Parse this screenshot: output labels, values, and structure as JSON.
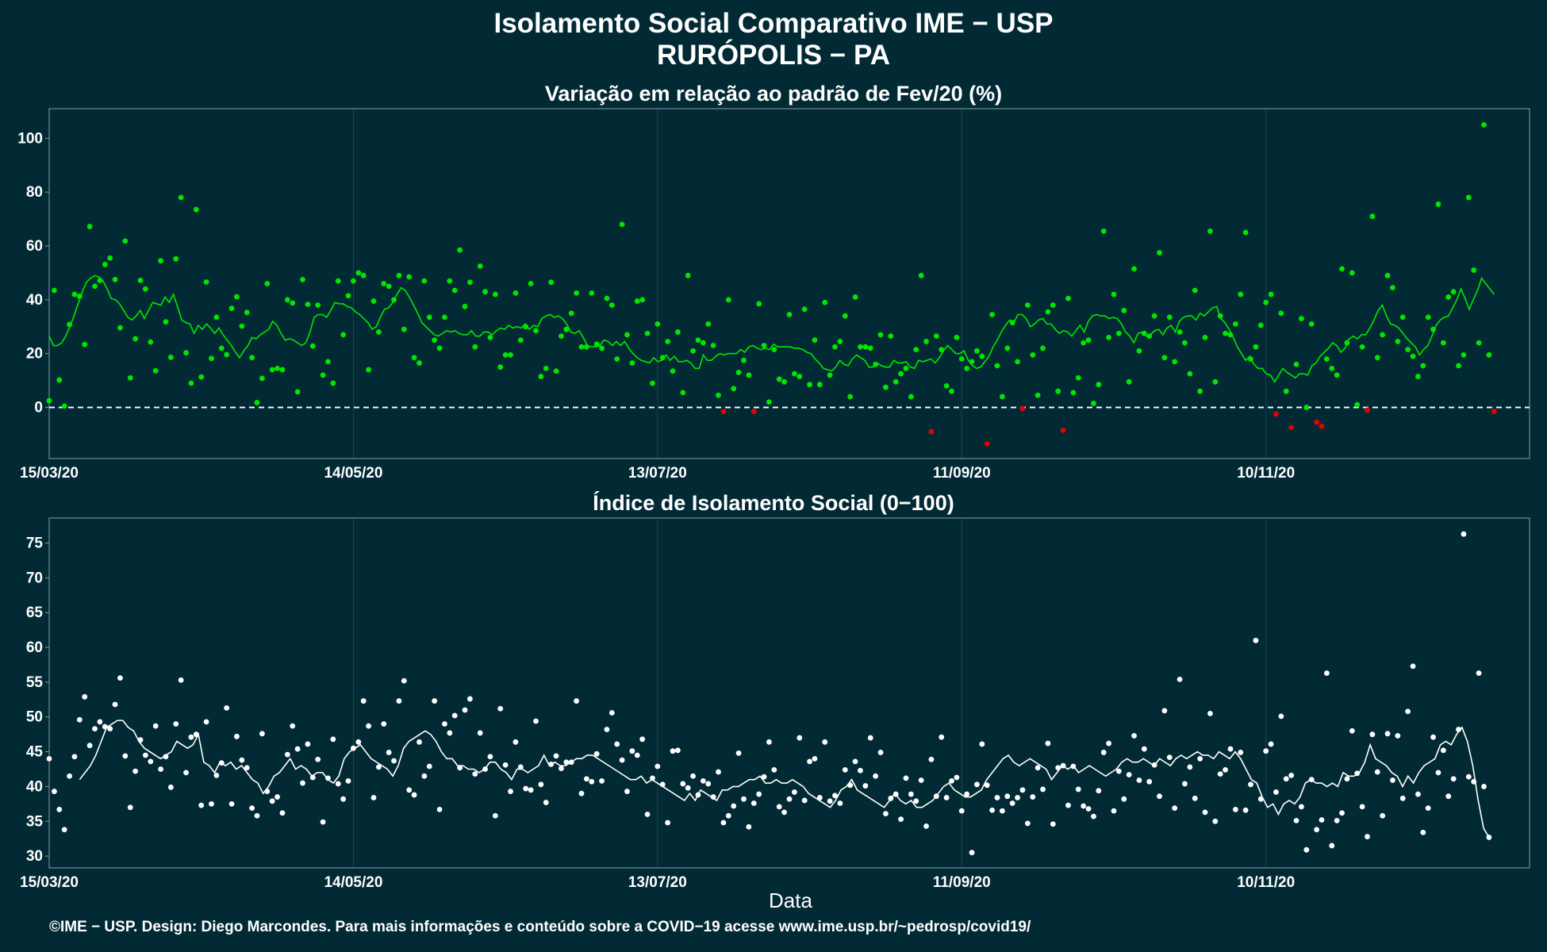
{
  "header": {
    "title": "Isolamento Social Comparativo IME − USP",
    "subtitle": "RURÓPOLIS − PA"
  },
  "footer": {
    "credit": "©IME − USP. Design: Diego Marcondes. Para mais informações e conteúdo sobre a COVID−19 acesse www.ime.usp.br/~pedrosp/covid19/"
  },
  "colors": {
    "background": "#022a35",
    "positive": "#00e600",
    "negative": "#e60000",
    "index_points": "#ffffff",
    "grid": "#1b4450",
    "frame": "#8a9ca2"
  },
  "chart_data": [
    {
      "type": "scatter",
      "title": "Variação em relação ao padrão de Fev/20 (%)",
      "xlabel": "",
      "ylabel": "",
      "x_start": "15/03/20",
      "x_end": "2021-01-01",
      "x_ticks": [
        "15/03/20",
        "14/05/20",
        "13/07/20",
        "11/09/20",
        "10/11/20"
      ],
      "yticks": [
        0,
        20,
        40,
        60,
        80,
        100
      ],
      "ylim": [
        -19,
        111
      ],
      "reference_line": 0,
      "values": [
        2.5,
        43.5,
        10.2,
        0.5,
        30.8,
        42.0,
        41.3,
        23.4,
        67.2,
        45.0,
        47.2,
        53.1,
        55.5,
        47.5,
        29.6,
        61.8,
        11.0,
        25.5,
        47.2,
        44.0,
        24.3,
        13.6,
        54.5,
        31.8,
        18.6,
        55.2,
        78.0,
        20.3,
        9.0,
        73.5,
        11.3,
        46.6,
        18.2,
        33.5,
        22.0,
        19.6,
        36.8,
        41.1,
        30.2,
        35.3,
        18.5,
        1.8,
        10.8,
        46.0,
        14.0,
        14.5,
        14.0,
        40.0,
        38.8,
        5.8,
        47.5,
        38.3,
        22.8,
        38.0,
        12.0,
        17.0,
        9.0,
        47.0,
        27.0,
        41.5,
        47.0,
        50.0,
        49.0,
        14.0,
        39.5,
        28.0,
        46.0,
        45.0,
        40.0,
        49.0,
        29.0,
        48.5,
        18.5,
        16.5,
        47.0,
        33.5,
        25.0,
        22.0,
        33.5,
        47.0,
        43.5,
        58.5,
        37.5,
        46.5,
        22.5,
        52.5,
        43.0,
        26.0,
        42.0,
        15.0,
        19.5,
        19.5,
        42.5,
        25.0,
        30.0,
        46.0,
        28.5,
        11.5,
        14.5,
        46.5,
        13.5,
        26.5,
        29.0,
        35.0,
        42.5,
        22.5,
        22.5,
        42.5,
        23.5,
        22.0,
        40.5,
        38.0,
        18.0,
        68.0,
        27.0,
        16.5,
        39.5,
        40.0,
        27.5,
        9.0,
        31.0,
        18.5,
        24.5,
        13.5,
        28.0,
        5.5,
        49.0,
        21.0,
        25.0,
        24.0,
        31.0,
        23.0,
        4.5,
        -1.5,
        40.0,
        7.0,
        13.0,
        17.5,
        12.0,
        -1.5,
        38.5,
        23.0,
        2.0,
        21.5,
        10.5,
        9.5,
        34.5,
        12.5,
        11.5,
        36.5,
        8.5,
        25.0,
        8.5,
        39.0,
        12.0,
        22.5,
        24.5,
        34.0,
        4.0,
        41.0,
        22.5,
        22.5,
        22.0,
        16.0,
        27.0,
        7.5,
        26.5,
        9.5,
        12.5,
        14.5,
        4.0,
        21.5,
        49.0,
        24.5,
        -9.0,
        26.5,
        21.5,
        8.0,
        6.0,
        26.0,
        18.0,
        14.5,
        17.0,
        21.0,
        19.0,
        -13.5,
        34.5,
        15.5,
        4.0,
        22.0,
        31.5,
        17.0,
        -0.5,
        38.0,
        19.5,
        4.5,
        22.0,
        35.5,
        38.0,
        6.0,
        -8.5,
        40.5,
        5.5,
        11.0,
        24.0,
        25.0,
        1.5,
        8.5,
        65.5,
        26.0,
        42.0,
        27.5,
        36.0,
        9.5,
        51.5,
        21.0,
        27.5,
        26.5,
        34.0,
        57.5,
        18.5,
        33.5,
        17.0,
        28.0,
        24.0,
        12.5,
        43.5,
        6.0,
        26.0,
        65.5,
        9.5,
        34.0,
        27.5,
        27.0,
        31.0,
        42.0,
        65.0,
        18.0,
        22.5,
        30.5,
        39.0,
        42.0,
        -2.5,
        35.0,
        6.0,
        -7.5,
        16.0,
        33.0,
        0.0,
        31.0,
        -5.5,
        -7.0,
        18.0,
        14.5,
        12.0,
        51.5,
        24.0,
        50.0,
        1.0,
        22.5,
        -1.0,
        71.0,
        18.5,
        27.0,
        49.0,
        44.5,
        24.5,
        33.5,
        21.5,
        19.0,
        11.5,
        15.5,
        33.5,
        29.0,
        75.5,
        24.0,
        41.0,
        43.0,
        15.5,
        19.5,
        78.0,
        51.0,
        24.0,
        105.0,
        19.5,
        -1.5
      ],
      "moving_average": [
        26.5,
        23.0,
        23.0,
        24.0,
        26.5,
        30.0,
        34.0,
        38.5,
        43.0,
        46.5,
        48.0,
        49.0,
        48.5,
        47.0,
        44.0,
        40.5,
        40.0,
        38.5,
        36.0,
        33.5,
        32.5,
        34.0,
        36.0,
        33.0,
        36.0,
        39.0,
        38.5,
        38.0,
        41.0,
        39.0,
        42.0,
        37.5,
        32.5,
        31.5,
        31.0,
        27.5,
        30.5,
        29.0,
        31.0,
        29.5,
        27.5,
        29.5,
        27.0,
        25.0,
        23.0,
        20.5,
        18.5,
        21.0,
        23.0,
        26.0,
        25.5,
        27.0,
        28.0,
        29.0,
        32.0,
        30.5,
        27.5,
        25.0,
        25.5,
        25.0,
        24.0,
        23.0,
        24.0,
        28.0,
        33.5,
        34.5,
        34.5,
        33.5,
        36.0,
        39.0,
        38.5,
        38.5,
        37.5,
        37.0,
        35.5,
        34.5,
        33.0,
        31.5,
        29.0,
        30.0,
        33.5,
        36.5,
        37.0,
        39.0,
        42.0,
        44.5,
        43.5,
        41.0,
        38.0,
        35.0,
        31.5,
        30.0,
        28.5,
        27.0,
        26.5,
        27.5,
        28.5,
        28.0,
        28.5,
        27.5,
        27.0,
        27.0,
        28.5,
        26.5,
        26.5,
        28.0,
        28.0,
        27.0,
        28.5,
        29.5,
        29.0,
        30.5,
        29.5,
        30.0,
        29.5,
        31.0,
        29.0,
        30.5,
        30.0,
        33.0,
        34.0,
        34.5,
        33.5,
        34.0,
        33.0,
        31.0,
        28.0,
        27.5,
        28.5,
        26.0,
        23.0,
        22.5,
        22.5,
        23.0,
        25.0,
        24.5,
        23.0,
        24.5,
        23.0,
        24.5,
        22.0,
        20.0,
        18.5,
        17.5,
        17.0,
        16.5,
        18.5,
        17.0,
        17.5,
        19.5,
        17.5,
        19.0,
        17.0,
        17.0,
        17.5,
        16.5,
        14.5,
        14.5,
        19.5,
        17.5,
        17.5,
        19.0,
        20.0,
        19.5,
        20.0,
        20.0,
        20.0,
        21.5,
        20.5,
        22.5,
        23.0,
        22.0,
        21.5,
        22.0,
        21.5,
        23.5,
        22.5,
        22.5,
        22.5,
        22.5,
        22.0,
        22.0,
        21.5,
        20.5,
        20.0,
        18.0,
        16.5,
        14.5,
        14.0,
        13.5,
        15.0,
        17.5,
        16.0,
        15.5,
        18.0,
        19.5,
        18.5,
        17.5,
        15.0,
        15.0,
        16.5,
        15.5,
        15.0,
        15.0,
        17.5,
        16.5,
        16.5,
        17.0,
        15.0,
        14.5,
        17.5,
        17.0,
        17.5,
        18.0,
        16.5,
        18.5,
        21.0,
        23.0,
        21.5,
        20.0,
        20.0,
        21.0,
        17.5,
        15.5,
        14.5,
        15.0,
        17.0,
        19.0,
        22.5,
        25.0,
        28.0,
        30.5,
        32.5,
        31.5,
        34.5,
        34.5,
        33.0,
        30.0,
        31.0,
        32.5,
        33.0,
        31.0,
        31.0,
        29.0,
        27.5,
        28.5,
        28.0,
        26.5,
        28.5,
        30.5,
        28.0,
        32.0,
        34.0,
        34.5,
        34.0,
        34.0,
        33.0,
        33.5,
        33.0,
        31.0,
        28.0,
        26.5,
        24.0,
        27.5,
        28.0,
        26.5,
        27.0,
        28.5,
        29.0,
        27.0,
        29.5,
        30.5,
        28.0,
        32.0,
        33.5,
        34.0,
        34.0,
        32.5,
        35.0,
        34.0,
        35.5,
        37.0,
        37.5,
        33.0,
        31.5,
        29.0,
        26.0,
        22.5,
        20.0,
        17.5,
        19.0,
        16.0,
        14.5,
        14.5,
        12.5,
        12.0,
        9.5,
        12.0,
        14.5,
        13.0,
        12.0,
        11.0,
        12.5,
        12.5,
        12.0,
        15.5,
        16.5,
        19.0,
        20.5,
        22.0,
        24.0,
        23.0,
        20.5,
        22.0,
        25.5,
        26.5,
        25.5,
        27.0,
        27.0,
        29.5,
        32.5,
        36.0,
        38.0,
        34.0,
        31.0,
        30.5,
        29.5,
        27.5,
        25.5,
        24.0,
        22.5,
        19.5,
        21.5,
        23.0,
        26.5,
        30.5,
        32.5,
        33.5,
        34.0,
        37.0,
        40.0,
        44.0,
        40.5,
        36.5,
        40.0,
        43.5,
        48.0,
        46.0,
        44.0,
        42.0
      ]
    },
    {
      "type": "scatter",
      "title": "Índice de Isolamento Social (0−100)",
      "xlabel": "Data",
      "ylabel": "",
      "x_start": "15/03/20",
      "x_end": "2021-01-01",
      "x_ticks": [
        "15/03/20",
        "14/05/20",
        "13/07/20",
        "11/09/20",
        "10/11/20"
      ],
      "yticks": [
        30,
        35,
        40,
        45,
        50,
        55,
        60,
        65,
        70,
        75
      ],
      "ylim": [
        28.3,
        78.6
      ],
      "values": [
        44.0,
        39.3,
        36.7,
        33.8,
        41.5,
        44.3,
        49.6,
        52.9,
        45.9,
        48.3,
        49.3,
        48.6,
        48.3,
        51.8,
        55.6,
        44.4,
        37.0,
        42.2,
        46.7,
        44.5,
        43.6,
        48.7,
        42.5,
        44.3,
        39.9,
        49.0,
        55.3,
        42.0,
        47.1,
        47.5,
        37.3,
        49.3,
        37.5,
        41.6,
        43.4,
        51.3,
        37.5,
        47.2,
        43.8,
        42.7,
        36.9,
        35.8,
        47.6,
        39.3,
        37.9,
        38.5,
        36.2,
        44.6,
        48.7,
        45.4,
        40.5,
        46.1,
        41.3,
        43.9,
        34.9,
        41.2,
        46.8,
        40.4,
        38.2,
        40.8,
        45.5,
        46.4,
        52.3,
        48.7,
        38.4,
        42.8,
        49.0,
        44.9,
        43.7,
        52.3,
        55.2,
        39.5,
        38.8,
        46.4,
        41.5,
        42.9,
        52.3,
        36.7,
        49.0,
        47.7,
        50.2,
        42.7,
        51.0,
        52.6,
        41.8,
        47.7,
        42.5,
        44.3,
        35.8,
        51.2,
        43.1,
        39.3,
        46.4,
        42.8,
        39.7,
        39.5,
        49.4,
        40.3,
        37.7,
        43.2,
        44.4,
        42.6,
        43.5,
        43.5,
        52.3,
        39.0,
        41.1,
        40.7,
        44.7,
        40.8,
        48.2,
        50.6,
        46.1,
        43.8,
        39.3,
        45.1,
        44.5,
        46.8,
        36.0,
        41.2,
        42.9,
        40.3,
        34.8,
        45.1,
        45.2,
        40.4,
        39.8,
        41.5,
        38.8,
        40.8,
        40.4,
        38.5,
        42.1,
        34.8,
        35.8,
        37.2,
        44.8,
        38.2,
        34.2,
        37.6,
        38.9,
        41.4,
        46.4,
        42.4,
        37.1,
        36.3,
        38.2,
        39.2,
        47.0,
        38.0,
        43.6,
        44.0,
        38.4,
        46.4,
        37.9,
        38.7,
        37.6,
        42.4,
        40.2,
        43.6,
        42.3,
        40.1,
        47.0,
        41.5,
        44.9,
        36.1,
        38.3,
        38.9,
        35.3,
        41.2,
        38.9,
        37.9,
        40.9,
        34.3,
        43.9,
        38.6,
        47.1,
        38.4,
        40.8,
        41.3,
        36.5,
        38.9,
        30.5,
        40.3,
        46.1,
        40.2,
        36.6,
        38.4,
        36.5,
        38.6,
        37.6,
        38.4,
        39.5,
        34.7,
        38.5,
        42.7,
        39.6,
        46.2,
        34.6,
        42.7,
        43.0,
        37.3,
        42.9,
        39.6,
        37.2,
        36.8,
        35.7,
        39.4,
        44.9,
        46.2,
        36.5,
        42.2,
        38.2,
        41.7,
        47.3,
        40.9,
        45.4,
        40.7,
        43.1,
        38.6,
        50.9,
        44.2,
        36.9,
        55.4,
        40.4,
        42.8,
        38.3,
        44.0,
        36.3,
        50.5,
        35.0,
        41.8,
        42.4,
        45.4,
        36.7,
        44.9,
        36.6,
        40.3,
        61.0,
        38.2,
        45.1,
        46.1,
        39.2,
        50.1,
        41.1,
        41.6,
        35.1,
        37.1,
        30.9,
        41.0,
        33.8,
        35.2,
        56.3,
        31.5,
        35.1,
        36.2,
        41.1,
        48.0,
        41.9,
        37.1,
        32.8,
        47.5,
        42.1,
        35.8,
        47.6,
        40.9,
        47.3,
        38.3,
        50.8,
        57.3,
        38.9,
        33.4,
        36.9,
        47.1,
        42.0,
        45.2,
        38.6,
        41.1,
        48.2,
        76.3,
        41.4,
        40.7,
        56.3,
        40.0,
        32.7
      ],
      "moving_average": [
        41.0,
        42.0,
        43.0,
        44.5,
        46.5,
        48.5,
        49.0,
        49.5,
        49.5,
        48.5,
        48.0,
        46.5,
        45.5,
        45.0,
        44.5,
        44.0,
        44.5,
        45.0,
        46.5,
        46.0,
        45.5,
        46.0,
        47.5,
        43.5,
        43.0,
        42.0,
        43.5,
        43.0,
        43.5,
        42.5,
        43.0,
        42.0,
        41.0,
        40.5,
        39.0,
        40.0,
        41.5,
        42.0,
        43.0,
        44.0,
        42.5,
        43.0,
        42.5,
        41.5,
        42.0,
        42.0,
        41.0,
        40.5,
        41.5,
        44.0,
        45.0,
        45.5,
        46.0,
        45.0,
        44.0,
        43.5,
        43.0,
        42.5,
        41.5,
        43.0,
        45.5,
        46.5,
        47.0,
        47.5,
        48.0,
        47.5,
        46.5,
        45.0,
        44.0,
        44.0,
        43.0,
        43.0,
        42.5,
        42.5,
        42.0,
        42.5,
        43.5,
        43.5,
        42.5,
        42.0,
        41.0,
        42.5,
        42.5,
        42.0,
        42.5,
        43.0,
        44.5,
        43.0,
        43.5,
        43.0,
        43.0,
        43.5,
        44.0,
        44.0,
        44.5,
        44.5,
        44.0,
        43.5,
        43.0,
        42.5,
        42.0,
        41.5,
        41.0,
        41.0,
        41.5,
        40.5,
        41.0,
        40.5,
        40.0,
        39.5,
        39.0,
        38.5,
        38.0,
        39.0,
        38.0,
        39.5,
        39.0,
        38.5,
        38.0,
        39.5,
        39.5,
        40.0,
        40.0,
        40.5,
        41.0,
        41.0,
        41.5,
        40.5,
        40.5,
        41.0,
        40.5,
        40.5,
        41.0,
        40.5,
        40.0,
        39.0,
        38.5,
        38.0,
        37.5,
        37.0,
        38.0,
        39.5,
        40.0,
        41.0,
        39.5,
        39.0,
        38.5,
        38.0,
        37.5,
        37.0,
        38.0,
        39.0,
        38.0,
        37.5,
        38.0,
        37.0,
        37.0,
        37.5,
        38.0,
        39.0,
        40.0,
        40.5,
        39.5,
        39.0,
        38.5,
        38.5,
        39.0,
        39.5,
        41.0,
        42.0,
        43.0,
        44.0,
        44.5,
        43.5,
        43.0,
        43.5,
        44.0,
        43.5,
        43.0,
        42.5,
        41.0,
        42.0,
        43.0,
        42.5,
        43.0,
        42.0,
        42.5,
        43.0,
        42.5,
        42.0,
        41.5,
        42.0,
        42.5,
        43.5,
        44.0,
        43.5,
        43.5,
        44.0,
        43.5,
        43.0,
        44.0,
        43.5,
        43.0,
        44.0,
        44.5,
        44.0,
        44.5,
        45.0,
        44.5,
        44.5,
        44.0,
        45.0,
        44.5,
        44.0,
        45.0,
        44.0,
        42.5,
        41.0,
        40.5,
        38.5,
        37.0,
        37.5,
        36.0,
        37.5,
        38.0,
        37.5,
        38.5,
        40.5,
        41.0,
        40.5,
        40.5,
        40.0,
        40.5,
        40.0,
        42.0,
        41.5,
        41.5,
        42.0,
        43.5,
        46.0,
        44.0,
        43.5,
        43.0,
        42.0,
        41.5,
        40.0,
        41.5,
        40.5,
        42.0,
        43.0,
        43.5,
        44.0,
        46.0,
        46.5,
        46.0,
        47.5,
        48.5,
        46.5,
        43.0,
        38.0,
        34.0,
        32.7
      ]
    }
  ]
}
